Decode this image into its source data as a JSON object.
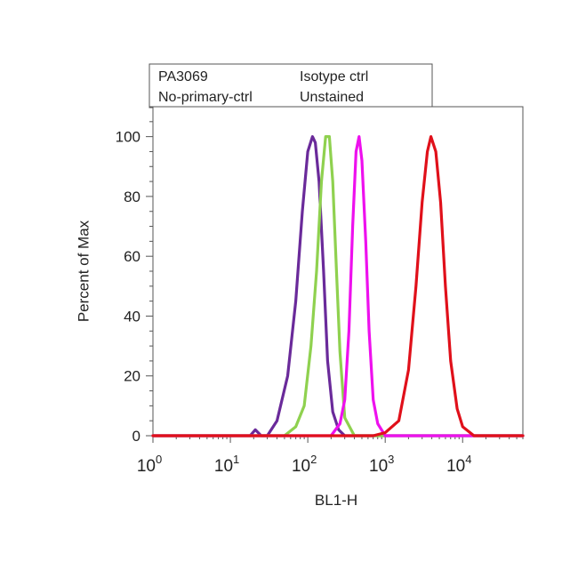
{
  "chart_data": {
    "type": "line",
    "xlabel": "BL1-H",
    "ylabel": "Percent of Max",
    "x_scale": "log",
    "xlim": [
      1,
      60000
    ],
    "ylim": [
      0,
      110
    ],
    "x_ticks": [
      {
        "value": 1,
        "base": "10",
        "exp": "0"
      },
      {
        "value": 10,
        "base": "10",
        "exp": "1"
      },
      {
        "value": 100,
        "base": "10",
        "exp": "2"
      },
      {
        "value": 1000,
        "base": "10",
        "exp": "3"
      },
      {
        "value": 10000,
        "base": "10",
        "exp": "4"
      }
    ],
    "y_ticks": [
      {
        "value": 0,
        "label": "0"
      },
      {
        "value": 20,
        "label": "20"
      },
      {
        "value": 40,
        "label": "40"
      },
      {
        "value": 60,
        "label": "60"
      },
      {
        "value": 80,
        "label": "80"
      },
      {
        "value": 100,
        "label": "100"
      }
    ],
    "legend_position": "top, above plot",
    "series": [
      {
        "name": "PA3069",
        "color": "#e0101a",
        "x": [
          1,
          700,
          1000,
          1500,
          2000,
          2500,
          3000,
          3500,
          3900,
          4500,
          5200,
          6000,
          7000,
          8500,
          10000,
          14000,
          60000
        ],
        "y": [
          0,
          0,
          1,
          5,
          22,
          50,
          78,
          95,
          100,
          95,
          78,
          50,
          25,
          9,
          3,
          0,
          0
        ]
      },
      {
        "name": "Isotype ctrl",
        "color": "#ee10ee",
        "x": [
          1,
          200,
          260,
          300,
          340,
          380,
          420,
          460,
          500,
          560,
          620,
          700,
          800,
          1000,
          60000
        ],
        "y": [
          0,
          0,
          4,
          12,
          35,
          70,
          95,
          100,
          92,
          65,
          35,
          12,
          4,
          0,
          0
        ]
      },
      {
        "name": "No-primary-ctrl",
        "color": "#8fd14f",
        "x": [
          1,
          50,
          70,
          90,
          110,
          130,
          150,
          170,
          190,
          210,
          235,
          260,
          300,
          400,
          60000
        ],
        "y": [
          0,
          0,
          3,
          10,
          30,
          55,
          85,
          100,
          100,
          85,
          55,
          28,
          6,
          0,
          0
        ]
      },
      {
        "name": "Unstained",
        "color": "#6a2a9a",
        "x": [
          1,
          18,
          21,
          25,
          30,
          40,
          55,
          70,
          85,
          100,
          115,
          125,
          140,
          160,
          180,
          210,
          250,
          300,
          60000
        ],
        "y": [
          0,
          0,
          2,
          0,
          0,
          5,
          20,
          45,
          75,
          95,
          100,
          98,
          85,
          55,
          25,
          8,
          2,
          0,
          0
        ]
      }
    ]
  }
}
